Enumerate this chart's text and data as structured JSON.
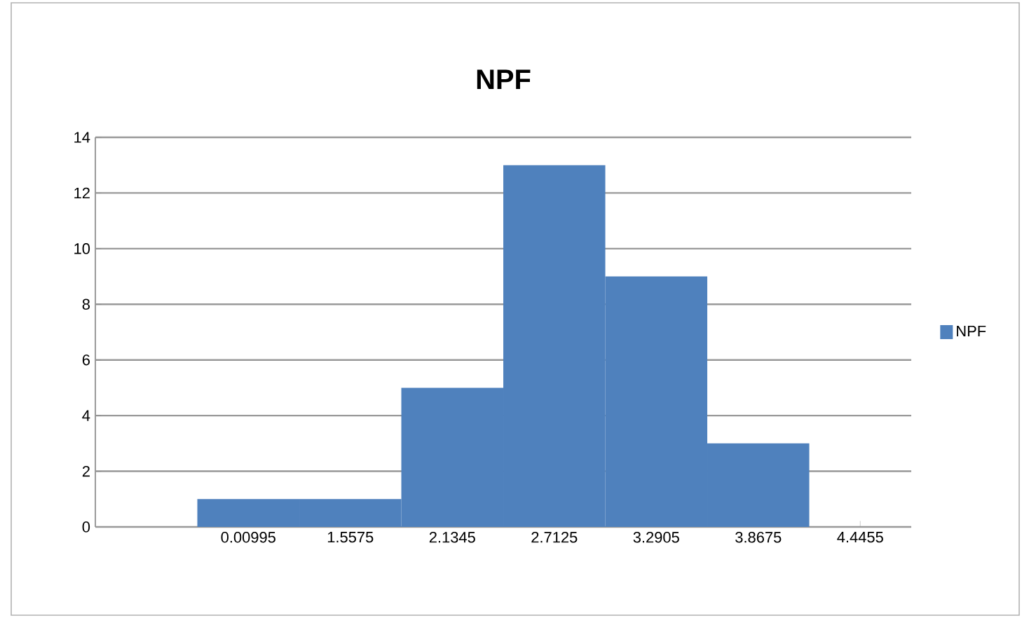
{
  "chart_data": {
    "type": "bar",
    "title": "NPF",
    "categories": [
      "0.00995",
      "1.5575",
      "2.1345",
      "2.7125",
      "3.2905",
      "3.8675",
      "4.4455"
    ],
    "series": [
      {
        "name": "NPF",
        "color": "#4f81bd",
        "values": [
          1,
          1,
          5,
          13,
          9,
          3,
          null
        ]
      }
    ],
    "ylim": [
      0,
      14
    ],
    "yticks": [
      0,
      2,
      4,
      6,
      8,
      10,
      12,
      14
    ],
    "grid": "y",
    "legend": "right"
  }
}
